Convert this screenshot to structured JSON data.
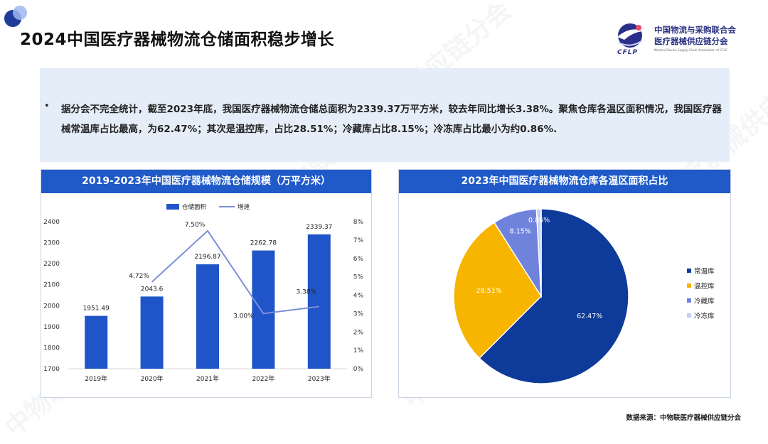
{
  "title": "2024中国医疗器械物流仓储面积稳步增长",
  "org": {
    "abbr": "CFLP",
    "line1": "中国物流与采购联合会",
    "line2": "医疗器械供应链分会",
    "line3": "Medical Device Supply Chain Association of CFLP"
  },
  "summary": {
    "bullet": "•",
    "text": "据分会不完全统计，截至2023年底，我国医疗器械物流仓储总面积为2339.37万平方米，较去年同比增长3.38%。聚焦仓库各温区面积情况，我国医疗器械常温库占比最高，为62.47%；其次是温控库，占比28.51%；冷藏库占比8.15%；冷冻库占比最小为约0.86%."
  },
  "source": "数据来源：中物联医疗器械供应链分会",
  "watermark": "中物联医疗器械供应链分会",
  "colors": {
    "bar": "#1f55c8",
    "line": "#7b8fd8",
    "header": "#1f5ac8",
    "box": "#e5eef8"
  },
  "chart_data": [
    {
      "type": "bar",
      "title": "2019-2023年中国医疗器械物流仓储规模（万平方米）",
      "categories": [
        "2019年",
        "2020年",
        "2021年",
        "2022年",
        "2023年"
      ],
      "series": [
        {
          "name": "仓储面积",
          "type": "bar",
          "axis": "left",
          "values": [
            1951.49,
            2043.6,
            2196.87,
            2262.78,
            2339.37
          ],
          "labels": [
            "1951.49",
            "2043.6",
            "2196.87",
            "2262.78",
            "2339.37"
          ]
        },
        {
          "name": "增速",
          "type": "line",
          "axis": "right",
          "values": [
            null,
            4.72,
            7.5,
            3.0,
            3.38
          ],
          "labels": [
            "",
            "4.72%",
            "7.50%",
            "3.00%",
            "3.38%"
          ]
        }
      ],
      "ylim": [
        1700,
        2400
      ],
      "yticks": [
        "2400",
        "2300",
        "2200",
        "2100",
        "2000",
        "1900",
        "1800",
        "1700"
      ],
      "y2lim": [
        0,
        8
      ],
      "y2ticks": [
        "8%",
        "7%",
        "6%",
        "5%",
        "4%",
        "3%",
        "2%",
        "1%",
        "0%"
      ],
      "legend_position": "top",
      "grid": false
    },
    {
      "type": "pie",
      "title": "2023年中国医疗器械物流仓库各温区面积占比",
      "slices": [
        {
          "label": "常温库",
          "value": 62.47,
          "text": "62.47%",
          "color": "#0e3a9a"
        },
        {
          "label": "温控库",
          "value": 28.51,
          "text": "28.51%",
          "color": "#f7b500"
        },
        {
          "label": "冷藏库",
          "value": 8.15,
          "text": "8.15%",
          "color": "#6f83dd"
        },
        {
          "label": "冷冻库",
          "value": 0.86,
          "text": "0.86%",
          "color": "#c3cff2"
        }
      ],
      "legend_position": "right"
    }
  ]
}
